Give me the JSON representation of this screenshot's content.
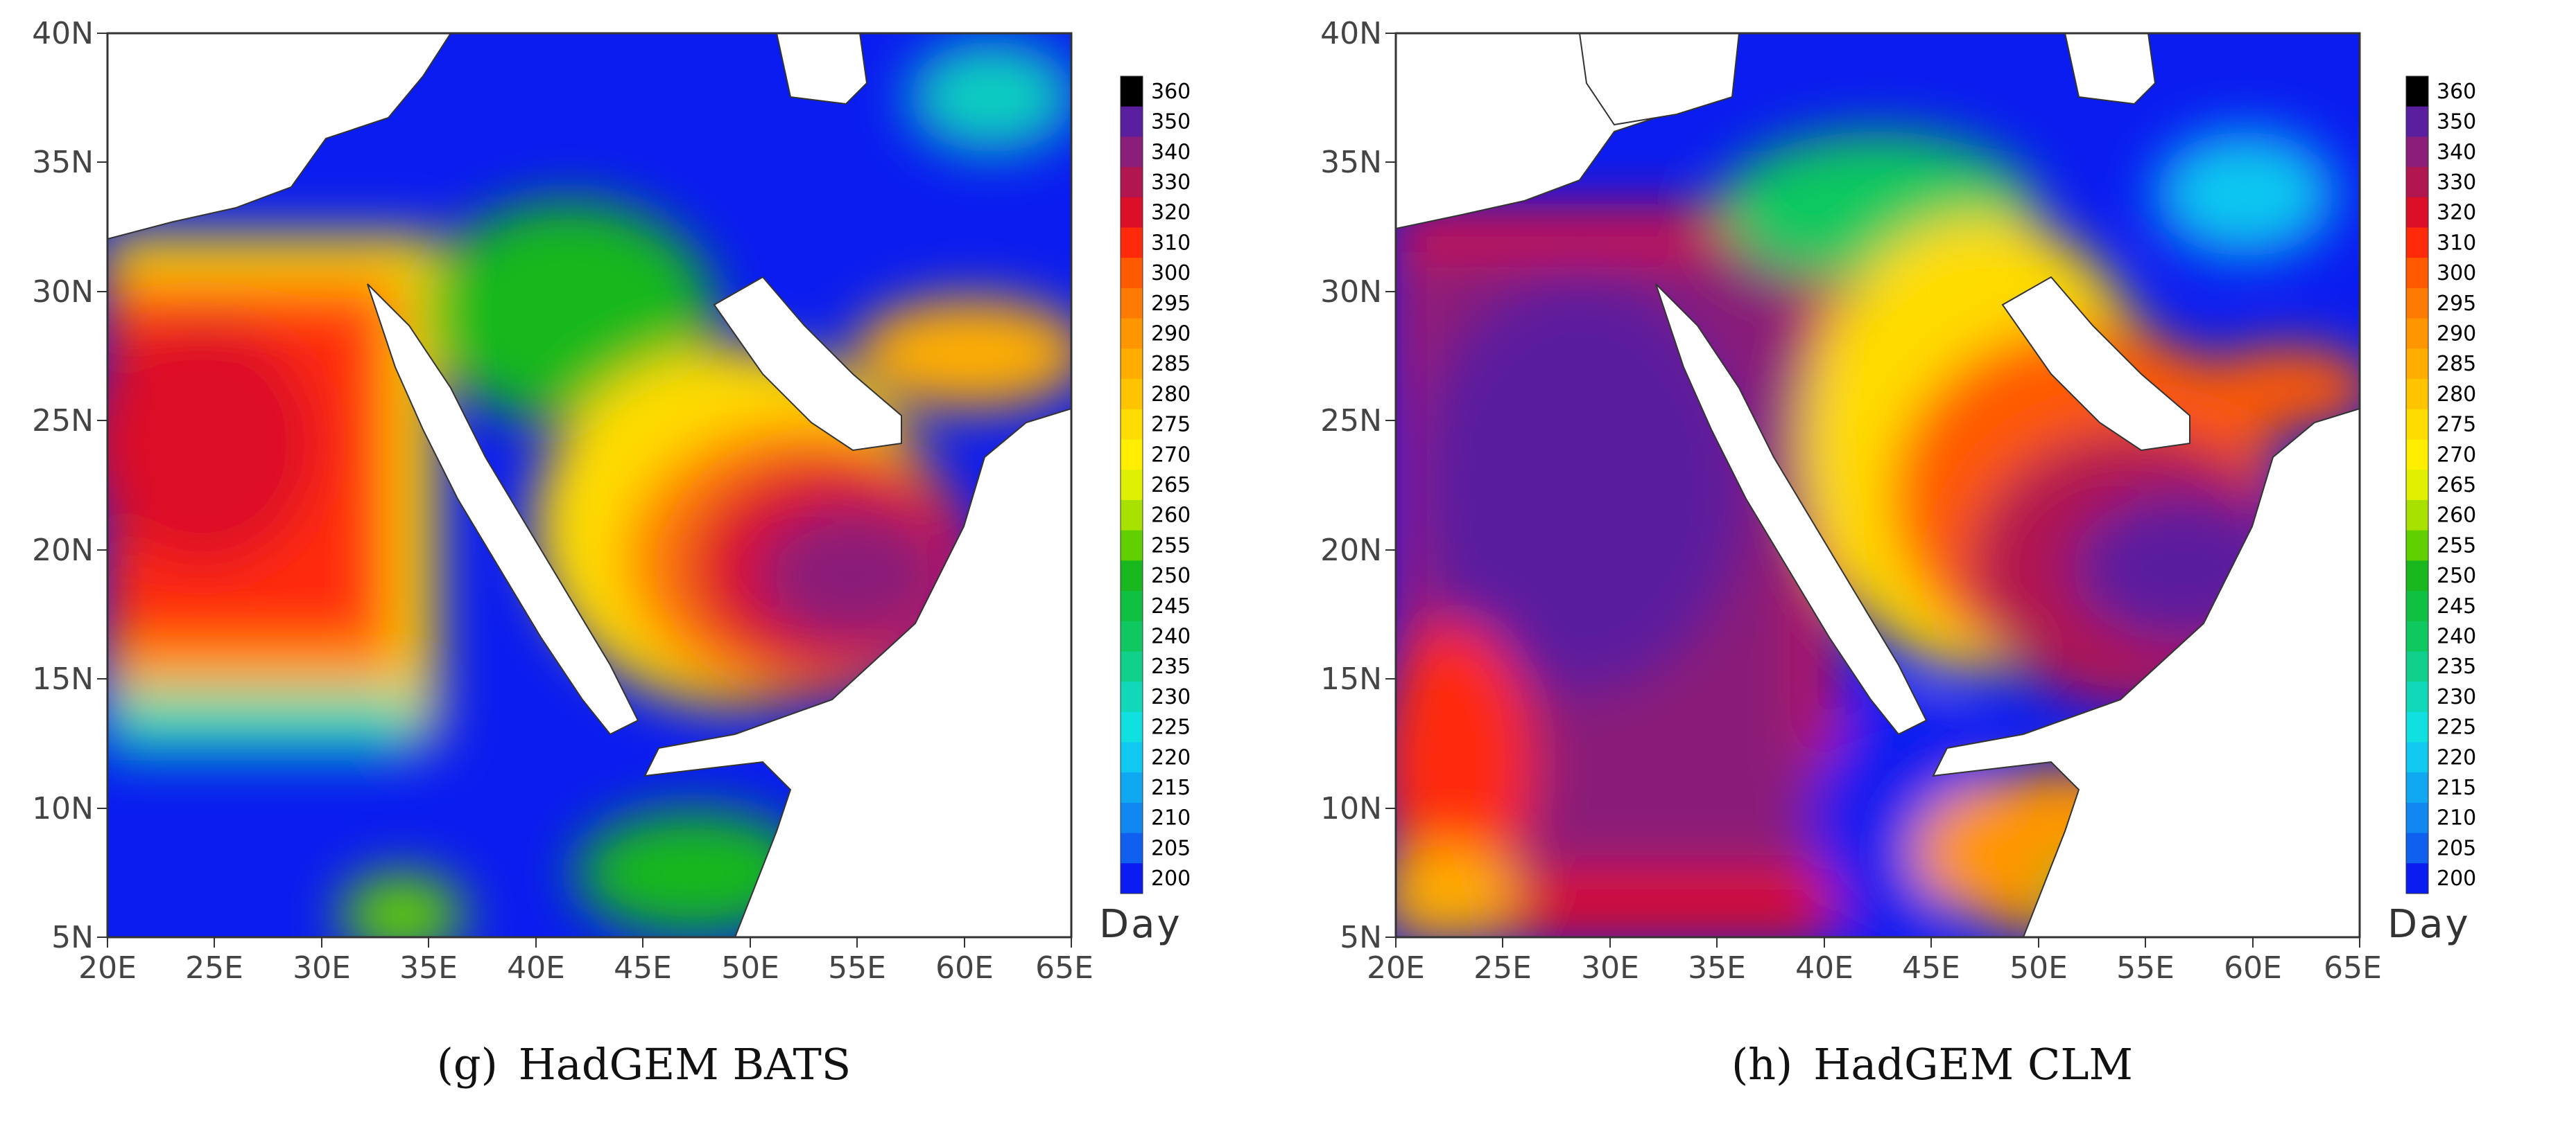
{
  "colorbar": {
    "unit": "Day",
    "levels": [
      "360",
      "350",
      "340",
      "330",
      "320",
      "310",
      "300",
      "295",
      "290",
      "285",
      "280",
      "275",
      "270",
      "265",
      "260",
      "255",
      "250",
      "245",
      "240",
      "235",
      "230",
      "225",
      "220",
      "215",
      "210",
      "205",
      "200"
    ],
    "colors": [
      "#000000",
      "#5a1f9e",
      "#8a1e78",
      "#b01650",
      "#dc0f28",
      "#ff2a0a",
      "#ff5a00",
      "#ff7a00",
      "#ff9600",
      "#ffae00",
      "#ffc400",
      "#ffdc00",
      "#ffee00",
      "#e0f000",
      "#a8e000",
      "#60d000",
      "#18b81e",
      "#10c040",
      "#10c860",
      "#10d08c",
      "#10d8b8",
      "#10e0e0",
      "#10c8f0",
      "#10a8f0",
      "#1088f0",
      "#1060f0",
      "#0a1cf0"
    ]
  },
  "axes": {
    "x_ticks": [
      "20E",
      "25E",
      "30E",
      "35E",
      "40E",
      "45E",
      "50E",
      "55E",
      "60E",
      "65E"
    ],
    "y_ticks": [
      "40N",
      "35N",
      "30N",
      "25N",
      "20N",
      "15N",
      "10N",
      "5N"
    ],
    "lon_range": [
      20,
      65
    ],
    "lat_range": [
      5,
      40
    ]
  },
  "panels": [
    {
      "id": "g",
      "label": "(g)",
      "title": "HadGEM BATS"
    },
    {
      "id": "h",
      "label": "(h)",
      "title": "HadGEM CLM"
    }
  ]
}
